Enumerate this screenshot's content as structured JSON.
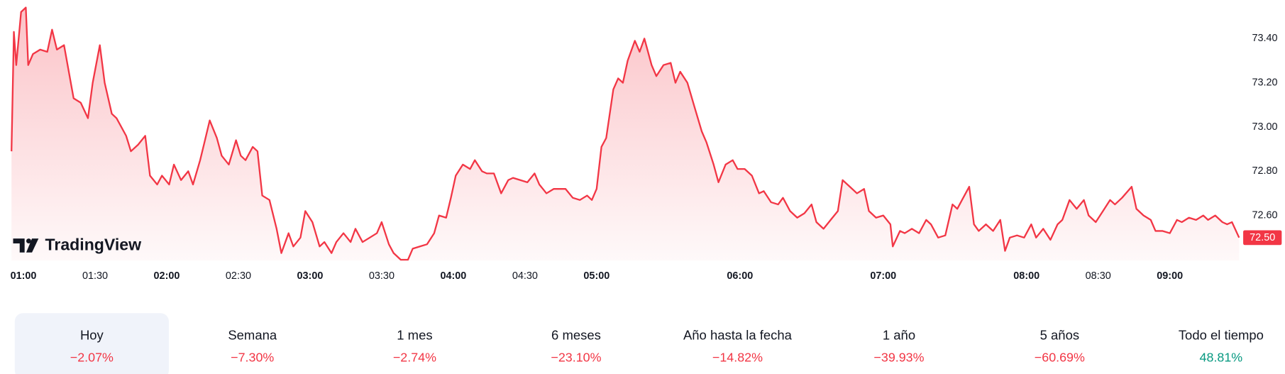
{
  "chart_data": {
    "type": "line",
    "logo": "TradingView",
    "color": "#f23645",
    "x": [
      55,
      56,
      57,
      59,
      61,
      62,
      64,
      67,
      70,
      72,
      74,
      77,
      81,
      84,
      87,
      89,
      92,
      94,
      97,
      99,
      103,
      105,
      108,
      111,
      113,
      116,
      118,
      121,
      123,
      126,
      129,
      131,
      134,
      136,
      138,
      141,
      143,
      146,
      149,
      151,
      153,
      156,
      158,
      160,
      163,
      166,
      168,
      171,
      173,
      176,
      178,
      181,
      184,
      186,
      189,
      191,
      194,
      197,
      199,
      202,
      205,
      208,
      210,
      213,
      215,
      218,
      221,
      223,
      226,
      229,
      232,
      234,
      237,
      239,
      241,
      244,
      247,
      249,
      252,
      254,
      257,
      260,
      263,
      265,
      268,
      271,
      274,
      276,
      279,
      282,
      285,
      287,
      290,
      293,
      296,
      298,
      300,
      302,
      304,
      307,
      309,
      311,
      313,
      316,
      318,
      320,
      323,
      325,
      328,
      331,
      333,
      335,
      338,
      341,
      344,
      346,
      349,
      351,
      354,
      357,
      359,
      362,
      365,
      368,
      370,
      373,
      376,
      378,
      381,
      384,
      387,
      390,
      392,
      395,
      398,
      401,
      403,
      406,
      409,
      412,
      414,
      417,
      420,
      423,
      424,
      427,
      429,
      432,
      435,
      438,
      440,
      443,
      446,
      449,
      451,
      453,
      456,
      458,
      460,
      463,
      466,
      469,
      471,
      473,
      476,
      479,
      482,
      484,
      487,
      490,
      493,
      495,
      498,
      501,
      504,
      506,
      509,
      512,
      515,
      517,
      520,
      524,
      526,
      529,
      532,
      534,
      537,
      540,
      543,
      545,
      548,
      551,
      554,
      556,
      559,
      562,
      564,
      566,
      569
    ],
    "values": [
      72.89,
      73.43,
      73.28,
      73.52,
      73.54,
      73.28,
      73.33,
      73.35,
      73.34,
      73.44,
      73.35,
      73.37,
      73.13,
      73.11,
      73.04,
      73.2,
      73.37,
      73.2,
      73.06,
      73.04,
      72.96,
      72.89,
      72.92,
      72.96,
      72.78,
      72.74,
      72.78,
      72.74,
      72.83,
      72.76,
      72.8,
      72.74,
      72.85,
      72.94,
      73.03,
      72.95,
      72.87,
      72.83,
      72.94,
      72.87,
      72.85,
      72.91,
      72.89,
      72.69,
      72.67,
      72.54,
      72.43,
      72.52,
      72.46,
      72.5,
      72.62,
      72.57,
      72.46,
      72.48,
      72.43,
      72.48,
      72.52,
      72.48,
      72.54,
      72.48,
      72.5,
      72.52,
      72.57,
      72.47,
      72.43,
      72.4,
      72.4,
      72.45,
      72.46,
      72.47,
      72.52,
      72.6,
      72.59,
      72.68,
      72.78,
      72.83,
      72.81,
      72.85,
      72.8,
      72.79,
      72.79,
      72.7,
      72.76,
      72.77,
      72.76,
      72.75,
      72.79,
      72.74,
      72.7,
      72.72,
      72.72,
      72.72,
      72.68,
      72.67,
      72.69,
      72.67,
      72.72,
      72.91,
      72.95,
      73.17,
      73.22,
      73.2,
      73.3,
      73.39,
      73.34,
      73.4,
      73.28,
      73.23,
      73.28,
      73.29,
      73.2,
      73.25,
      73.2,
      73.09,
      72.98,
      72.93,
      72.83,
      72.75,
      72.83,
      72.85,
      72.81,
      72.81,
      72.78,
      72.7,
      72.71,
      72.66,
      72.65,
      72.68,
      72.62,
      72.59,
      72.61,
      72.65,
      72.57,
      72.54,
      72.58,
      72.62,
      72.76,
      72.73,
      72.7,
      72.72,
      72.62,
      72.59,
      72.6,
      72.56,
      72.46,
      72.53,
      72.52,
      72.54,
      72.52,
      72.58,
      72.56,
      72.5,
      72.51,
      72.65,
      72.63,
      72.67,
      72.73,
      72.56,
      72.53,
      72.56,
      72.53,
      72.58,
      72.44,
      72.5,
      72.51,
      72.5,
      72.56,
      72.5,
      72.54,
      72.49,
      72.56,
      72.58,
      72.67,
      72.63,
      72.67,
      72.6,
      72.57,
      72.62,
      72.67,
      72.65,
      72.68,
      72.73,
      72.63,
      72.6,
      72.58,
      72.53,
      72.53,
      72.52,
      72.58,
      72.57,
      72.59,
      72.58,
      72.6,
      72.58,
      72.6,
      72.57,
      72.56,
      72.57,
      72.5
    ],
    "last_label": "72.50",
    "xlim": [
      55,
      569
    ],
    "ylim": [
      72.396,
      73.574
    ],
    "xticks": [
      {
        "value": 60,
        "label": "01:00"
      },
      {
        "value": 90,
        "label": "01:30"
      },
      {
        "value": 120,
        "label": "02:00"
      },
      {
        "value": 150,
        "label": "02:30"
      },
      {
        "value": 180,
        "label": "03:00"
      },
      {
        "value": 210,
        "label": "03:30"
      },
      {
        "value": 240,
        "label": "04:00"
      },
      {
        "value": 270,
        "label": "04:30"
      },
      {
        "value": 300,
        "label": "05:00"
      },
      {
        "value": 360,
        "label": "06:00"
      },
      {
        "value": 420,
        "label": "07:00"
      },
      {
        "value": 480,
        "label": "08:00"
      },
      {
        "value": 510,
        "label": "08:30"
      },
      {
        "value": 540,
        "label": "09:00"
      }
    ],
    "yticks": [
      {
        "value": 72.6,
        "label": "72.60"
      },
      {
        "value": 72.8,
        "label": "72.80"
      },
      {
        "value": 73.0,
        "label": "73.00"
      },
      {
        "value": 73.2,
        "label": "73.20"
      },
      {
        "value": 73.4,
        "label": "73.40"
      }
    ],
    "grid": false
  },
  "periods": {
    "selected": 0,
    "items": [
      {
        "label": "Hoy",
        "change": "−2.07%",
        "color": "#f23645"
      },
      {
        "label": "Semana",
        "change": "−7.30%",
        "color": "#f23645"
      },
      {
        "label": "1 mes",
        "change": "−2.74%",
        "color": "#f23645"
      },
      {
        "label": "6 meses",
        "change": "−23.10%",
        "color": "#f23645"
      },
      {
        "label": "Año hasta la fecha",
        "change": "−14.82%",
        "color": "#f23645"
      },
      {
        "label": "1 año",
        "change": "−39.93%",
        "color": "#f23645"
      },
      {
        "label": "5 años",
        "change": "−60.69%",
        "color": "#f23645"
      },
      {
        "label": "Todo el tiempo",
        "change": "48.81%",
        "color": "#089981"
      }
    ]
  }
}
